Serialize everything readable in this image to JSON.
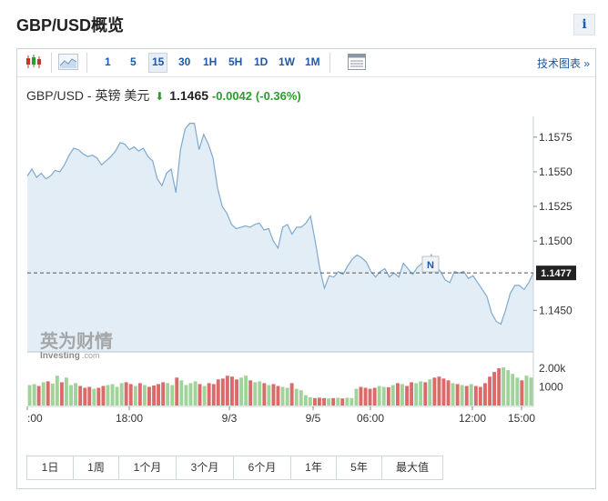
{
  "title": "GBP/USD概览",
  "info_label": "i",
  "toolbar": {
    "intervals": [
      "1",
      "5",
      "15",
      "30",
      "1H",
      "5H",
      "1D",
      "1W",
      "1M"
    ],
    "active_interval": "15",
    "tech_chart_link": "技术图表 »",
    "icons": [
      "candlestick-icon",
      "area-chart-icon",
      "table-icon"
    ]
  },
  "quote": {
    "name": "GBP/USD - 英镑 美元",
    "direction": "down",
    "price": "1.1465",
    "change": "-0.0042",
    "change_pct": "(-0.36%)"
  },
  "watermark": {
    "cn": "英为财情",
    "en": "Investing",
    "suffix": ".com"
  },
  "marker_label": "N",
  "current_price_label": "1.1477",
  "colors": {
    "line": "#7fa9cf",
    "area": "#e3edf6",
    "vol_up": "#9fd39a",
    "vol_down": "#dc6a6a",
    "accent": "#1b5aa6",
    "positive": "#2a9d2a"
  },
  "chart_data": {
    "type": "area",
    "y_ticks": [
      "1.1575",
      "1.1550",
      "1.1525",
      "1.1500",
      "1.1450"
    ],
    "ylim": [
      1.142,
      1.159
    ],
    "x_ticks": [
      ":00",
      "18:00",
      "9/3",
      "9/5",
      "06:00",
      "12:00",
      "15:00"
    ],
    "current_price": 1.1477,
    "values": [
      1.1547,
      1.1552,
      1.1546,
      1.1549,
      1.1545,
      1.1547,
      1.1551,
      1.155,
      1.1555,
      1.1562,
      1.1567,
      1.1566,
      1.1563,
      1.1561,
      1.1562,
      1.156,
      1.1555,
      1.1558,
      1.1561,
      1.1565,
      1.1571,
      1.157,
      1.1566,
      1.1568,
      1.1565,
      1.1567,
      1.1561,
      1.1558,
      1.1545,
      1.154,
      1.1549,
      1.1552,
      1.1535,
      1.1566,
      1.1581,
      1.1585,
      1.1585,
      1.1566,
      1.1577,
      1.157,
      1.156,
      1.1538,
      1.1525,
      1.152,
      1.1512,
      1.1509,
      1.151,
      1.1511,
      1.151,
      1.1512,
      1.1513,
      1.1508,
      1.1509,
      1.15,
      1.1495,
      1.151,
      1.1512,
      1.1505,
      1.151,
      1.151,
      1.1513,
      1.1518,
      1.15,
      1.148,
      1.1466,
      1.1475,
      1.1474,
      1.1478,
      1.1476,
      1.1482,
      1.1487,
      1.149,
      1.1488,
      1.1485,
      1.1478,
      1.1474,
      1.1478,
      1.148,
      1.1474,
      1.1477,
      1.1474,
      1.1484,
      1.148,
      1.1476,
      1.1481,
      1.1484,
      1.1481,
      1.149,
      1.1482,
      1.1478,
      1.1472,
      1.147,
      1.1478,
      1.1477,
      1.1478,
      1.1473,
      1.1475,
      1.147,
      1.1465,
      1.146,
      1.1448,
      1.1442,
      1.144,
      1.145,
      1.1462,
      1.1468,
      1.1468,
      1.1465,
      1.147,
      1.1477
    ],
    "volumes": [
      1100,
      1150,
      1050,
      1250,
      1300,
      1180,
      1600,
      1250,
      1500,
      1100,
      1200,
      1050,
      950,
      1000,
      900,
      950,
      1050,
      1100,
      1150,
      1000,
      1200,
      1250,
      1150,
      1050,
      1200,
      1100,
      1000,
      1080,
      1150,
      1250,
      1200,
      1100,
      1500,
      1350,
      1100,
      1200,
      1300,
      1150,
      1050,
      1200,
      1150,
      1400,
      1450,
      1600,
      1550,
      1400,
      1500,
      1600,
      1350,
      1250,
      1300,
      1200,
      1100,
      1150,
      1050,
      1000,
      950,
      1200,
      900,
      820,
      550,
      450,
      400,
      420,
      400,
      380,
      400,
      420,
      380,
      420,
      400,
      900,
      1000,
      950,
      900,
      950,
      1050,
      1000,
      980,
      1100,
      1200,
      1150,
      1050,
      1250,
      1200,
      1300,
      1250,
      1400,
      1500,
      1550,
      1450,
      1350,
      1200,
      1150,
      1100,
      1050,
      1150,
      1050,
      1000,
      1200,
      1550,
      1800,
      2000,
      2050,
      1900,
      1700,
      1500,
      1350,
      1600,
      1500
    ],
    "volume_ticks": [
      "2.00k",
      "1000"
    ]
  },
  "range_buttons": [
    "1日",
    "1周",
    "1个月",
    "3个月",
    "6个月",
    "1年",
    "5年",
    "最大值"
  ]
}
